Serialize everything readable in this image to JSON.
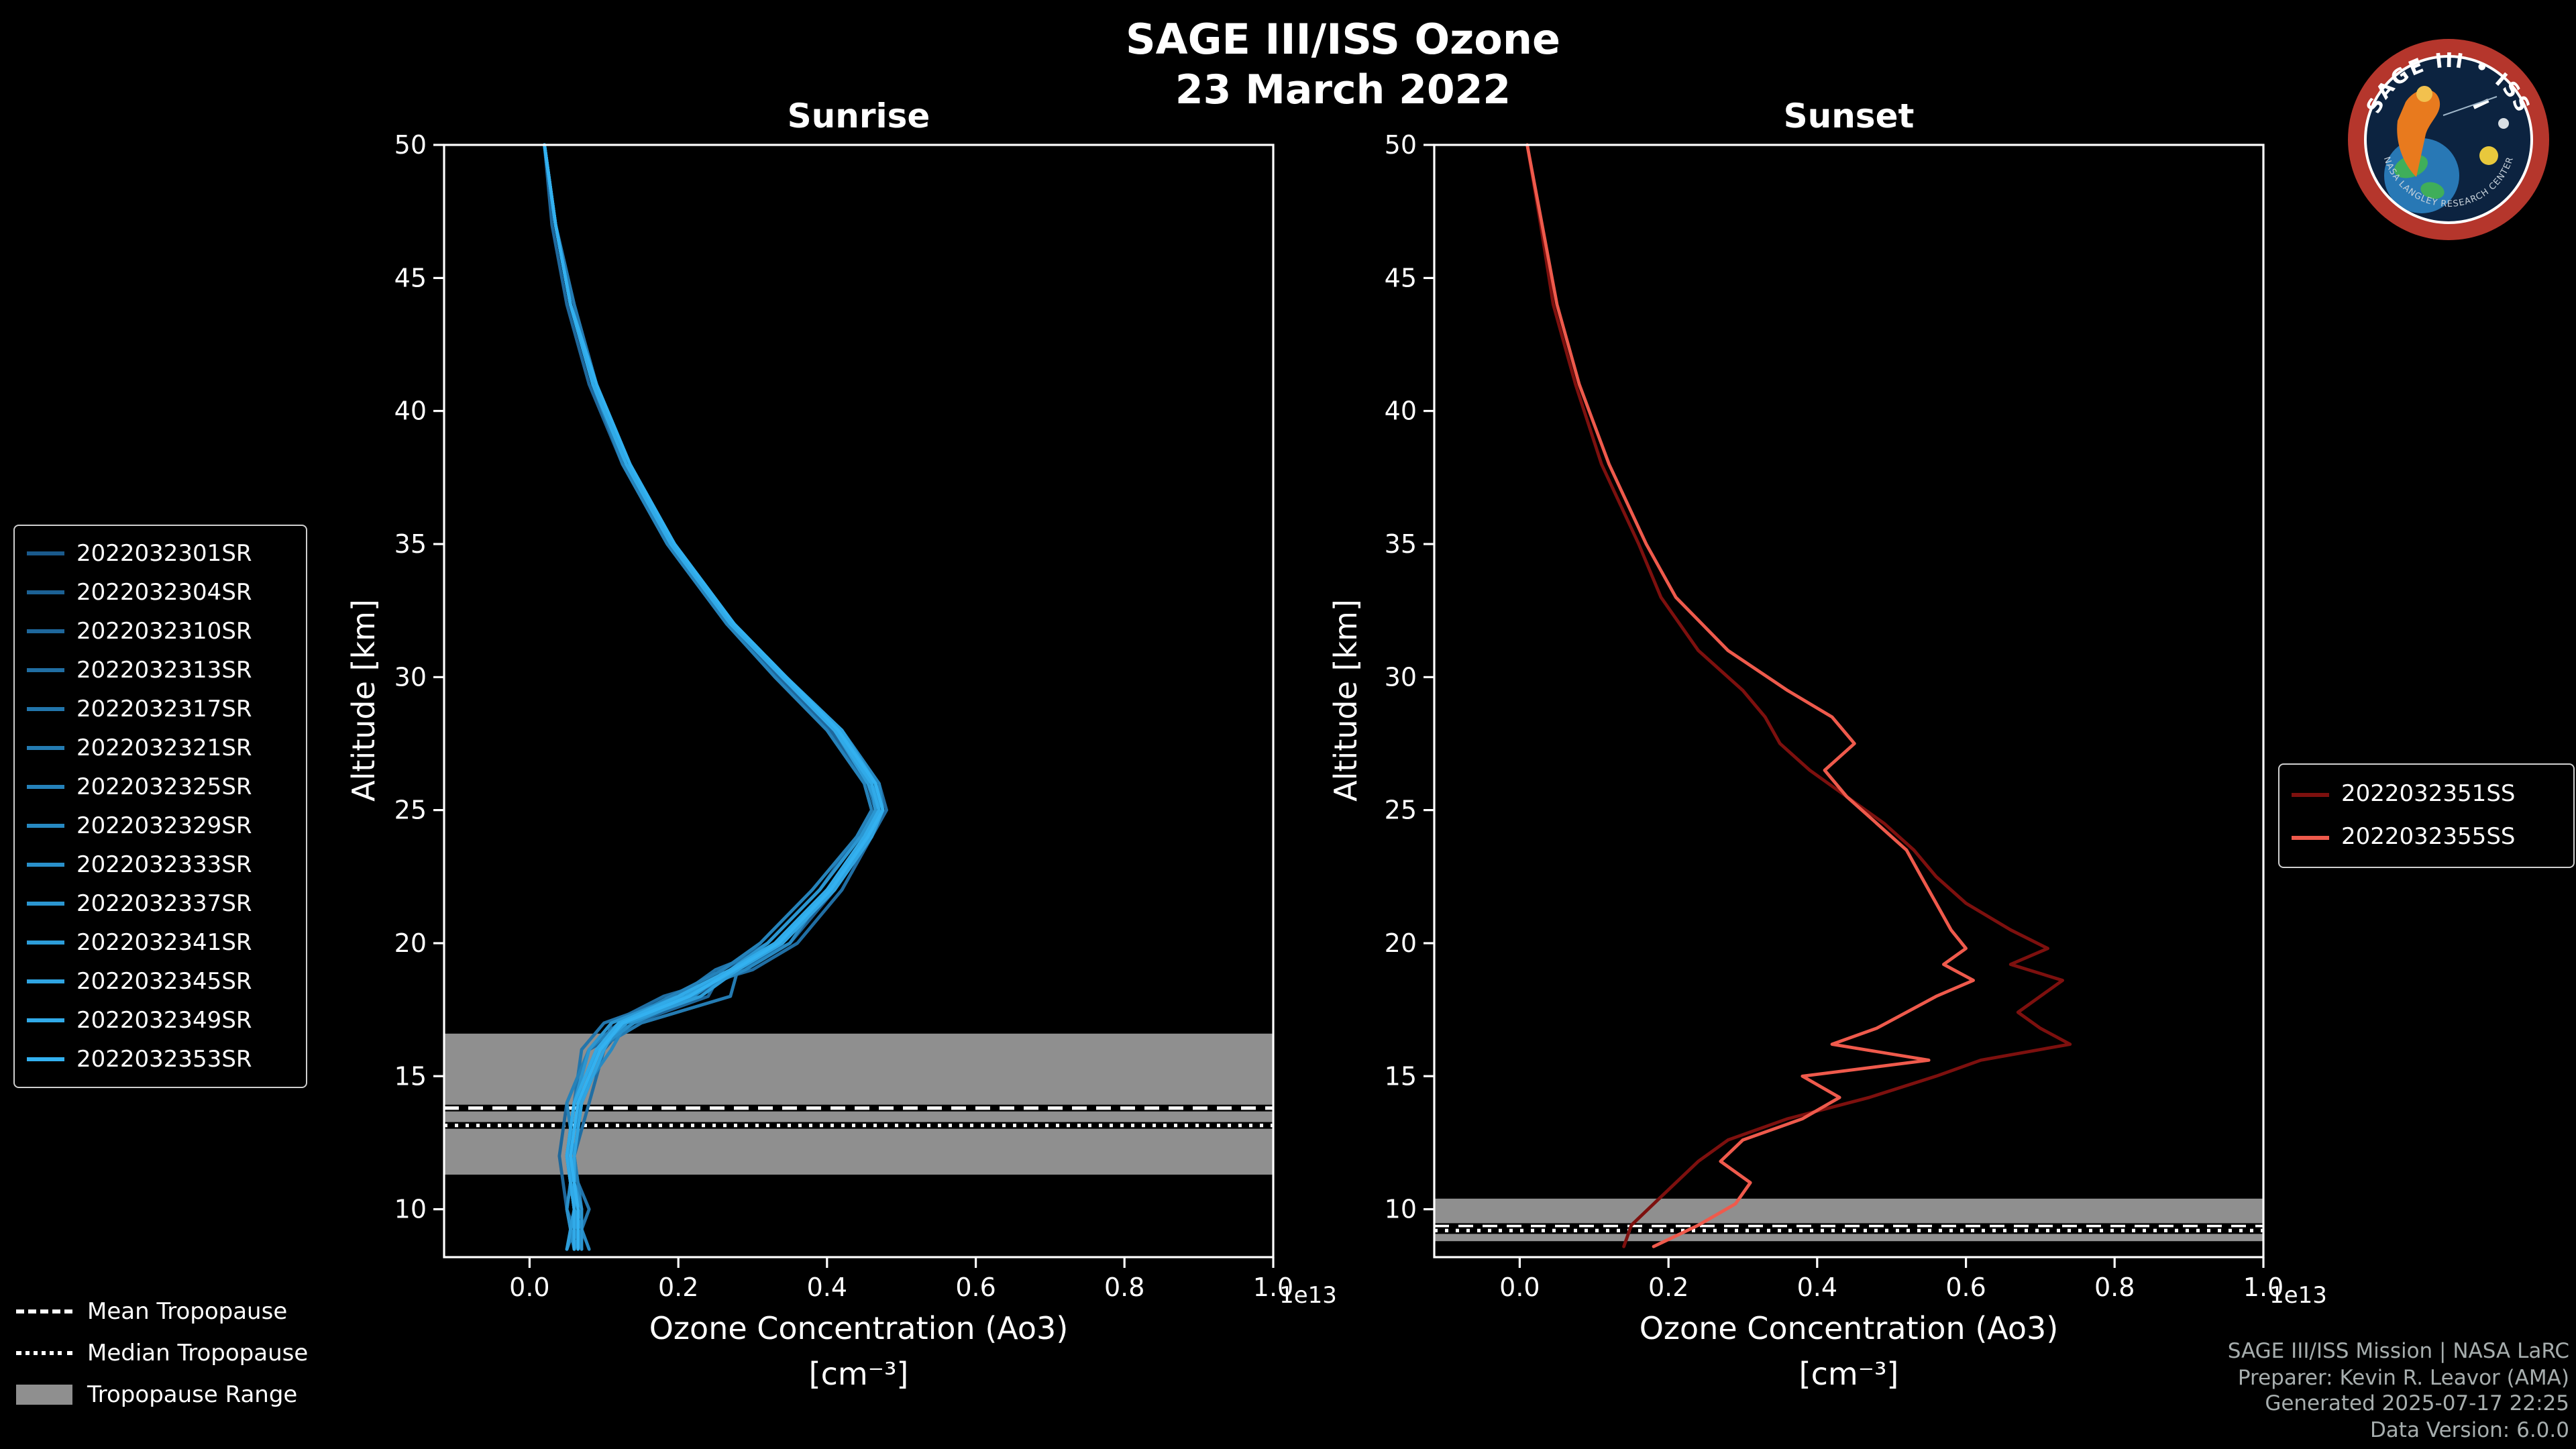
{
  "header": {
    "title": "SAGE III/ISS Ozone",
    "subtitle": "23 March 2022"
  },
  "logo": {
    "title": "SAGE III • ISS",
    "subtitle": "NASA LANGLEY RESEARCH CENTER",
    "ring_color": "#b5362c",
    "field_color": "#0c2340"
  },
  "style": {
    "background": "#000000",
    "band_color": "#8f8f8f",
    "frame_color": "#ffffff",
    "text_color": "#ffffff",
    "credit_color": "#a7aeae"
  },
  "tropopause_legend": {
    "mean_label": "Mean Tropopause",
    "median_label": "Median Tropopause",
    "range_label": "Tropopause Range"
  },
  "credits": {
    "lines": [
      "SAGE III/ISS Mission | NASA LaRC",
      "Preparer: Kevin R. Leavor (AMA)",
      "Generated 2025-07-17 22:25",
      "Data Version: 6.0.0"
    ]
  },
  "chart_data": [
    {
      "type": "line",
      "title": "Sunrise",
      "xlabel": "Ozone Concentration (Ao3)",
      "xlabel_units": "[cm⁻³]",
      "x_offset_text": "1e13",
      "ylabel": "Altitude [km]",
      "xlim": [
        -0.115,
        1.0
      ],
      "ylim": [
        8.2,
        50
      ],
      "xticks": [
        0.0,
        0.2,
        0.4,
        0.6,
        0.8,
        1.0
      ],
      "yticks": [
        10,
        15,
        20,
        25,
        30,
        35,
        40,
        45,
        50
      ],
      "grid": false,
      "legend_position": "outside-left",
      "tropopause": {
        "mean": 13.8,
        "median": 13.15,
        "range": [
          11.3,
          16.6
        ]
      },
      "altitudes": [
        50,
        47,
        44,
        41,
        38,
        35,
        32,
        30,
        28,
        26,
        25,
        24,
        22,
        20,
        19,
        18,
        17,
        16,
        14,
        12,
        10,
        8.5
      ],
      "series": [
        {
          "name": "2022032301SR",
          "color": "#1a5a8c",
          "values": [
            0.02,
            0.035,
            0.055,
            0.085,
            0.13,
            0.19,
            0.27,
            0.34,
            0.41,
            0.46,
            0.47,
            0.45,
            0.4,
            0.33,
            0.27,
            0.21,
            0.12,
            0.09,
            0.06,
            0.05,
            0.06,
            0.06
          ]
        },
        {
          "name": "2022032304SR",
          "color": "#1c6194",
          "values": [
            0.02,
            0.035,
            0.06,
            0.09,
            0.135,
            0.195,
            0.275,
            0.345,
            0.415,
            0.465,
            0.475,
            0.455,
            0.41,
            0.35,
            0.28,
            0.22,
            0.13,
            0.1,
            0.07,
            0.06,
            0.07,
            0.05
          ]
        },
        {
          "name": "2022032310SR",
          "color": "#1e679b",
          "values": [
            0.02,
            0.03,
            0.05,
            0.08,
            0.125,
            0.185,
            0.265,
            0.335,
            0.405,
            0.45,
            0.46,
            0.44,
            0.39,
            0.32,
            0.26,
            0.24,
            0.14,
            0.08,
            0.05,
            0.04,
            0.05,
            0.07
          ]
        },
        {
          "name": "2022032313SR",
          "color": "#206ea3",
          "values": [
            0.02,
            0.035,
            0.055,
            0.085,
            0.13,
            0.19,
            0.27,
            0.345,
            0.42,
            0.47,
            0.48,
            0.46,
            0.42,
            0.36,
            0.3,
            0.18,
            0.11,
            0.1,
            0.08,
            0.06,
            0.05,
            0.06
          ]
        },
        {
          "name": "2022032317SR",
          "color": "#2275ab",
          "values": [
            0.02,
            0.035,
            0.055,
            0.09,
            0.135,
            0.19,
            0.275,
            0.34,
            0.41,
            0.455,
            0.465,
            0.45,
            0.4,
            0.34,
            0.25,
            0.2,
            0.1,
            0.07,
            0.06,
            0.05,
            0.08,
            0.06
          ]
        },
        {
          "name": "2022032321SR",
          "color": "#247bb2",
          "values": [
            0.02,
            0.035,
            0.06,
            0.09,
            0.13,
            0.195,
            0.27,
            0.34,
            0.415,
            0.46,
            0.47,
            0.46,
            0.41,
            0.33,
            0.28,
            0.27,
            0.15,
            0.09,
            0.07,
            0.05,
            0.06,
            0.07
          ]
        },
        {
          "name": "2022032325SR",
          "color": "#2582ba",
          "values": [
            0.02,
            0.035,
            0.055,
            0.085,
            0.125,
            0.185,
            0.265,
            0.33,
            0.4,
            0.45,
            0.46,
            0.44,
            0.38,
            0.31,
            0.26,
            0.19,
            0.12,
            0.08,
            0.05,
            0.06,
            0.07,
            0.05
          ]
        },
        {
          "name": "2022032329SR",
          "color": "#2789c2",
          "values": [
            0.02,
            0.035,
            0.055,
            0.085,
            0.13,
            0.19,
            0.27,
            0.34,
            0.42,
            0.47,
            0.475,
            0.455,
            0.4,
            0.35,
            0.29,
            0.21,
            0.13,
            0.11,
            0.06,
            0.05,
            0.06,
            0.08
          ]
        },
        {
          "name": "2022032333SR",
          "color": "#2990ca",
          "values": [
            0.02,
            0.035,
            0.055,
            0.085,
            0.13,
            0.19,
            0.275,
            0.345,
            0.415,
            0.465,
            0.47,
            0.45,
            0.41,
            0.34,
            0.27,
            0.22,
            0.14,
            0.09,
            0.07,
            0.06,
            0.05,
            0.06
          ]
        },
        {
          "name": "2022032337SR",
          "color": "#2b96d1",
          "values": [
            0.02,
            0.035,
            0.055,
            0.09,
            0.13,
            0.19,
            0.27,
            0.34,
            0.41,
            0.46,
            0.465,
            0.445,
            0.39,
            0.32,
            0.27,
            0.2,
            0.11,
            0.08,
            0.06,
            0.05,
            0.07,
            0.07
          ]
        },
        {
          "name": "2022032341SR",
          "color": "#2d9dd9",
          "values": [
            0.02,
            0.035,
            0.055,
            0.085,
            0.13,
            0.19,
            0.27,
            0.34,
            0.41,
            0.455,
            0.47,
            0.455,
            0.4,
            0.33,
            0.28,
            0.23,
            0.13,
            0.09,
            0.06,
            0.05,
            0.06,
            0.05
          ]
        },
        {
          "name": "2022032345SR",
          "color": "#2fa4e1",
          "values": [
            0.02,
            0.035,
            0.055,
            0.085,
            0.13,
            0.195,
            0.275,
            0.345,
            0.42,
            0.465,
            0.475,
            0.46,
            0.41,
            0.34,
            0.28,
            0.21,
            0.12,
            0.1,
            0.07,
            0.06,
            0.06,
            0.06
          ]
        },
        {
          "name": "2022032349SR",
          "color": "#31aae8",
          "values": [
            0.02,
            0.035,
            0.055,
            0.085,
            0.13,
            0.19,
            0.27,
            0.34,
            0.41,
            0.46,
            0.47,
            0.45,
            0.4,
            0.33,
            0.27,
            0.2,
            0.12,
            0.09,
            0.06,
            0.05,
            0.06,
            0.06
          ]
        },
        {
          "name": "2022032353SR",
          "color": "#33b1f0",
          "values": [
            0.02,
            0.035,
            0.055,
            0.09,
            0.135,
            0.195,
            0.275,
            0.345,
            0.415,
            0.465,
            0.475,
            0.455,
            0.405,
            0.335,
            0.275,
            0.215,
            0.125,
            0.095,
            0.065,
            0.055,
            0.065,
            0.065
          ]
        }
      ]
    },
    {
      "type": "line",
      "title": "Sunset",
      "xlabel": "Ozone Concentration (Ao3)",
      "xlabel_units": "[cm⁻³]",
      "x_offset_text": "1e13",
      "ylabel": "Altitude [km]",
      "xlim": [
        -0.115,
        1.0
      ],
      "ylim": [
        8.2,
        50
      ],
      "xticks": [
        0.0,
        0.2,
        0.4,
        0.6,
        0.8,
        1.0
      ],
      "yticks": [
        10,
        15,
        20,
        25,
        30,
        35,
        40,
        45,
        50
      ],
      "grid": false,
      "legend_position": "outside-right",
      "tropopause": {
        "mean": 9.35,
        "median": 9.2,
        "range": [
          8.8,
          10.4
        ]
      },
      "altitudes": [
        50,
        47,
        44,
        41,
        38,
        35,
        33,
        31,
        29.5,
        28.5,
        27.5,
        26.5,
        25.5,
        24.5,
        23.5,
        22.5,
        21.5,
        20.5,
        19.8,
        19.2,
        18.6,
        18,
        17.4,
        16.8,
        16.2,
        15.6,
        15,
        14.2,
        13.4,
        12.6,
        11.8,
        11,
        10.2,
        9.4,
        8.6
      ],
      "series": [
        {
          "name": "2022032351SS",
          "color": "#7d100e",
          "values": [
            0.01,
            0.028,
            0.045,
            0.075,
            0.11,
            0.16,
            0.19,
            0.24,
            0.3,
            0.33,
            0.35,
            0.39,
            0.44,
            0.49,
            0.53,
            0.56,
            0.6,
            0.66,
            0.71,
            0.66,
            0.73,
            0.7,
            0.67,
            0.7,
            0.74,
            0.62,
            0.56,
            0.47,
            0.36,
            0.28,
            0.24,
            0.21,
            0.18,
            0.15,
            0.14
          ]
        },
        {
          "name": "2022032355SS",
          "color": "#ef5a4c",
          "values": [
            0.01,
            0.03,
            0.05,
            0.08,
            0.12,
            0.17,
            0.21,
            0.28,
            0.36,
            0.42,
            0.45,
            0.41,
            0.44,
            0.48,
            0.52,
            0.54,
            0.56,
            0.58,
            0.6,
            0.57,
            0.61,
            0.56,
            0.52,
            0.48,
            0.42,
            0.55,
            0.38,
            0.43,
            0.38,
            0.3,
            0.27,
            0.31,
            0.29,
            0.24,
            0.18
          ]
        }
      ]
    }
  ]
}
